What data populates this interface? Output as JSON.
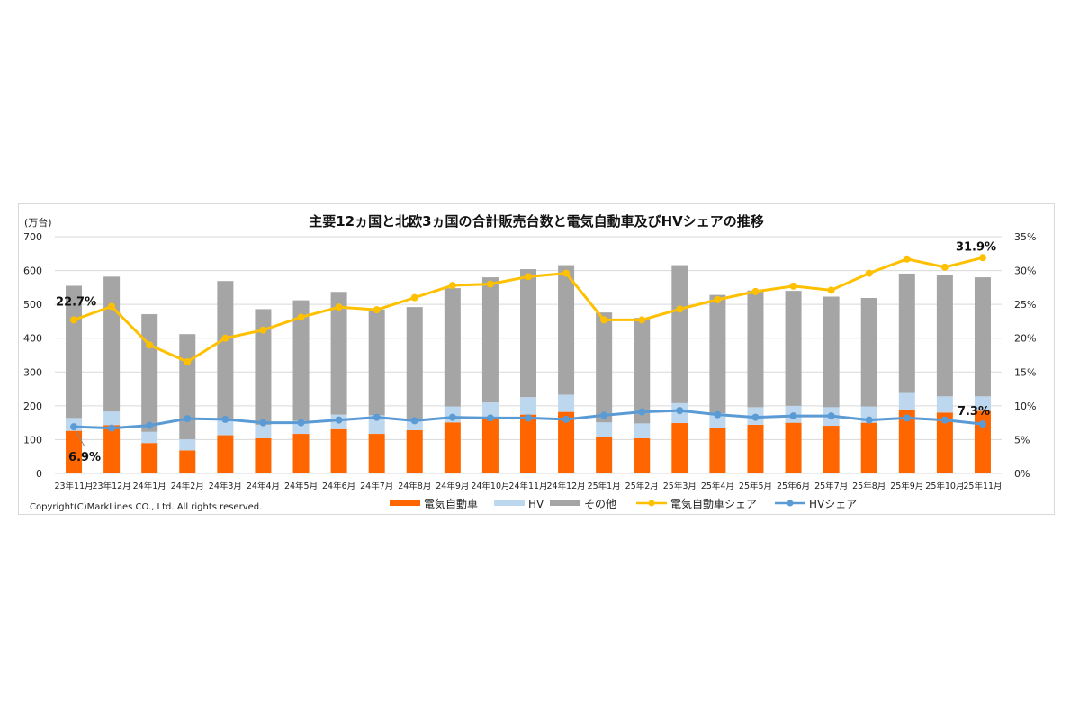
{
  "chart_data": {
    "type": "bar",
    "subtype": "stacked bar + line (dual axis)",
    "title": "主要12ヵ国と北欧3ヵ国の合計販売台数と電気自動車及びHVシェアの推移",
    "ylabel": "(万台)",
    "ylim": [
      0,
      700
    ],
    "yticks": [
      0,
      100,
      200,
      300,
      400,
      500,
      600,
      700
    ],
    "y2lim": [
      0,
      35
    ],
    "y2ticks": [
      "0%",
      "5%",
      "10%",
      "15%",
      "20%",
      "25%",
      "30%",
      "35%"
    ],
    "grid": true,
    "legend_position": "bottom",
    "categories": [
      "23年11月",
      "23年12月",
      "24年1月",
      "24年2月",
      "24年3月",
      "24年4月",
      "24年5月",
      "24年6月",
      "24年7月",
      "24年8月",
      "24年9月",
      "24年10月",
      "24年11月",
      "24年12月",
      "25年1月",
      "25年2月",
      "25年3月",
      "25年4月",
      "25年5月",
      "25年6月",
      "25年7月",
      "25年8月",
      "25年9月",
      "25年10月",
      "25年11月"
    ],
    "series": [
      {
        "name": "電気自動車",
        "type": "bar",
        "color": "#ff6600",
        "values": [
          126,
          143,
          90,
          68,
          113,
          104,
          117,
          131,
          117,
          128,
          151,
          163,
          174,
          182,
          108,
          104,
          149,
          135,
          144,
          150,
          141,
          150,
          187,
          180,
          185
        ]
      },
      {
        "name": "HV",
        "type": "bar",
        "color": "#bdd7ee",
        "values": [
          38,
          40,
          33,
          33,
          48,
          40,
          38,
          43,
          55,
          33,
          47,
          47,
          52,
          51,
          43,
          44,
          59,
          43,
          52,
          50,
          55,
          48,
          51,
          48,
          43
        ]
      },
      {
        "name": "その他",
        "type": "bar",
        "color": "#a5a5a5",
        "values": [
          391,
          399,
          348,
          311,
          408,
          342,
          357,
          363,
          313,
          331,
          350,
          370,
          378,
          383,
          325,
          312,
          408,
          350,
          345,
          340,
          327,
          321,
          353,
          358,
          352
        ]
      },
      {
        "name": "電気自動車シェア",
        "type": "line",
        "axis": "right",
        "color": "#ffc000",
        "values": [
          22.7,
          24.7,
          19.0,
          16.5,
          20.0,
          21.2,
          23.1,
          24.6,
          24.2,
          26.0,
          27.8,
          28.0,
          29.1,
          29.6,
          22.7,
          22.7,
          24.3,
          25.7,
          26.9,
          27.7,
          27.1,
          29.6,
          31.7,
          30.5,
          31.9
        ]
      },
      {
        "name": "HVシェア",
        "type": "line",
        "axis": "right",
        "color": "#5b9bd5",
        "values": [
          6.9,
          6.7,
          7.1,
          8.1,
          8.0,
          7.5,
          7.5,
          7.9,
          8.3,
          7.8,
          8.3,
          8.2,
          8.2,
          8.0,
          8.6,
          9.1,
          9.3,
          8.7,
          8.3,
          8.5,
          8.5,
          7.9,
          8.2,
          7.9,
          7.3
        ]
      }
    ],
    "annotations": [
      {
        "text": "22.7%",
        "series": "電気自動車シェア",
        "index": 0
      },
      {
        "text": "6.9%",
        "series": "HVシェア",
        "index": 0
      },
      {
        "text": "31.9%",
        "series": "電気自動車シェア",
        "index": 24
      },
      {
        "text": "7.3%",
        "series": "HVシェア",
        "index": 24
      }
    ]
  },
  "copyright": "Copyright(C)MarkLines CO., Ltd. All rights reserved."
}
